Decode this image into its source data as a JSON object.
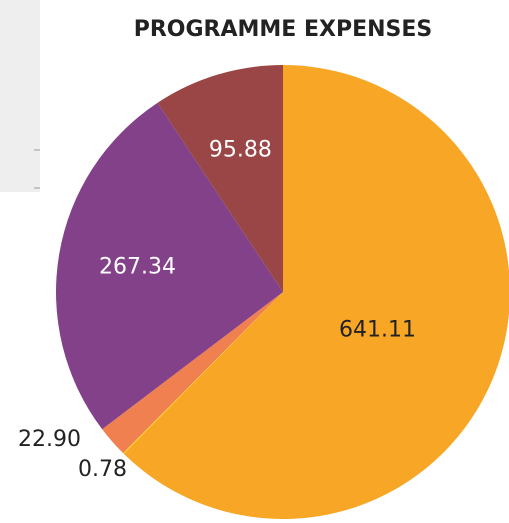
{
  "chart_data": {
    "type": "pie",
    "title": "PROGRAMME EXPENSES",
    "categories": [
      null,
      null,
      null,
      null,
      null
    ],
    "values": [
      641.11,
      0.78,
      22.9,
      267.34,
      95.88
    ],
    "value_labels": [
      "641.11",
      "0.78",
      "22.90",
      "267.34",
      "95.88"
    ],
    "colors": [
      "#f7a626",
      "#fdd21b",
      "#f0804f",
      "#83418a",
      "#9a4646"
    ]
  }
}
